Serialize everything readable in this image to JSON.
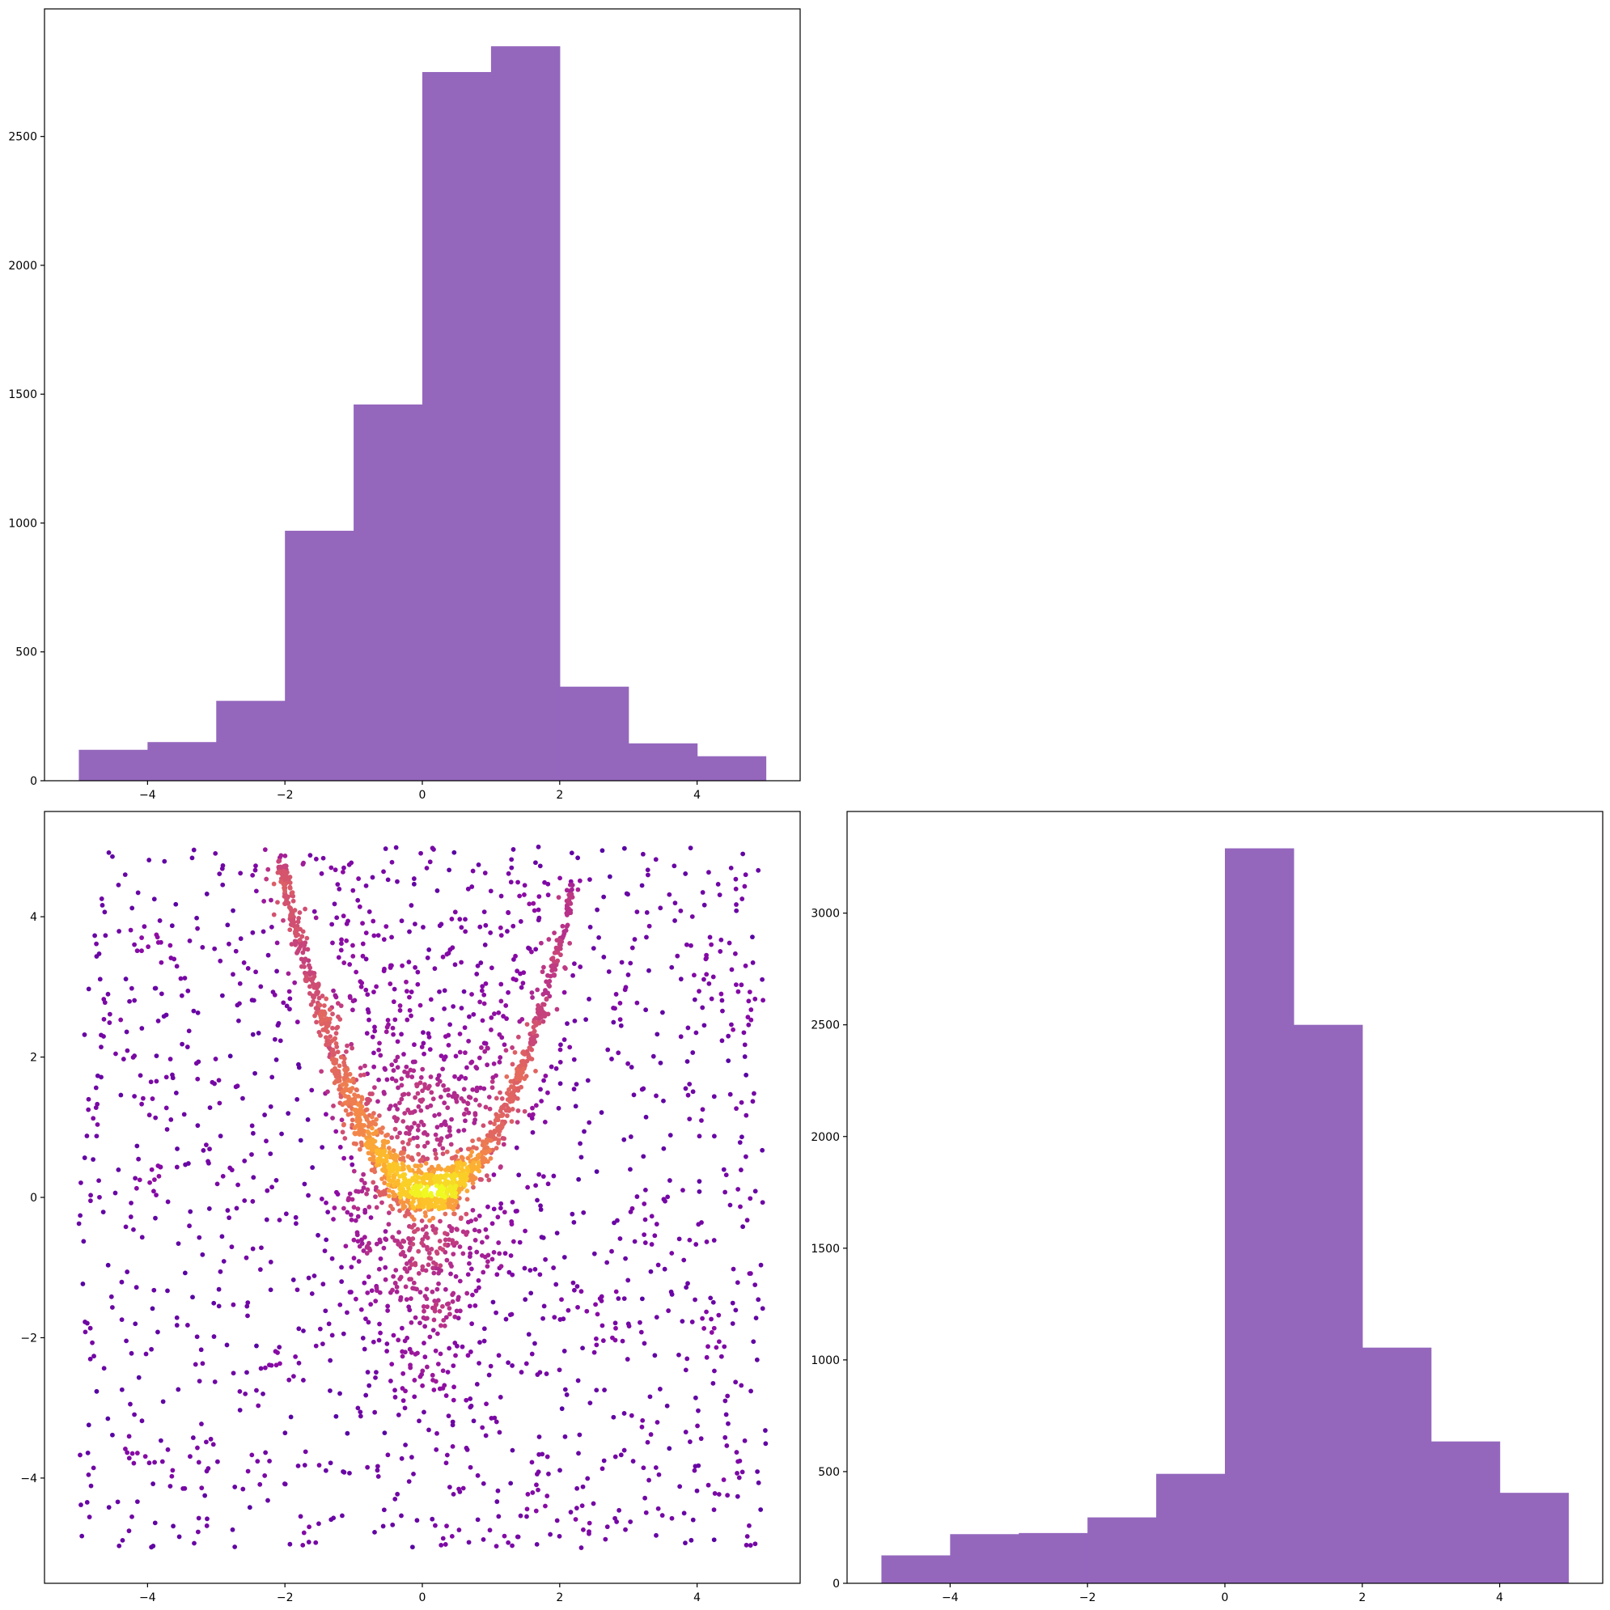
{
  "chart_data": [
    {
      "type": "bar",
      "panel": "top-left",
      "title": "",
      "xlabel": "",
      "ylabel": "",
      "bin_edges": [
        -5,
        -4,
        -3,
        -2,
        -1,
        0,
        1,
        2,
        3,
        4,
        5
      ],
      "values": [
        120,
        150,
        310,
        970,
        1460,
        2750,
        2850,
        365,
        145,
        95
      ],
      "xlim": [
        -5.5,
        5.5
      ],
      "ylim": [
        0,
        2995
      ],
      "xticks": [
        -4,
        -2,
        0,
        2,
        4
      ],
      "xtick_labels": [
        "−4",
        "−2",
        "0",
        "2",
        "4"
      ],
      "yticks": [
        0,
        500,
        1000,
        1500,
        2000,
        2500
      ],
      "ytick_labels": [
        "0",
        "500",
        "1000",
        "1500",
        "2000",
        "2500"
      ],
      "grid": false,
      "color": "#9467bd"
    },
    {
      "type": "scatter",
      "panel": "bottom-left",
      "title": "",
      "xlabel": "",
      "ylabel": "",
      "description_of_points": "approx. 3000 points, uniform background over [-5,5]x[-5,5] plus a dense parabolic band y=(x-0.1)^2 with a secondary arm y=(x-0.1)^2+0.3; colored by point density (plasma colormap, dark purple = sparse, yellow = dense)",
      "xlim": [
        -5.5,
        5.5
      ],
      "ylim": [
        -5.5,
        5.5
      ],
      "xticks": [
        -4,
        -2,
        0,
        2,
        4
      ],
      "xtick_labels": [
        "−4",
        "−2",
        "0",
        "2",
        "4"
      ],
      "yticks": [
        -4,
        -2,
        0,
        2,
        4
      ],
      "ytick_labels": [
        "−4",
        "−2",
        "0",
        "2",
        "4"
      ],
      "colormap": "plasma",
      "colormap_stops": [
        "#0d0887",
        "#5302a3",
        "#8b0aa5",
        "#b83289",
        "#db5c68",
        "#f48849",
        "#febd2a",
        "#f0f921"
      ],
      "grid": false
    },
    {
      "type": "bar",
      "panel": "bottom-right",
      "title": "",
      "xlabel": "",
      "ylabel": "",
      "bin_edges": [
        -5,
        -4,
        -3,
        -2,
        -1,
        0,
        1,
        2,
        3,
        4,
        5
      ],
      "values": [
        125,
        220,
        225,
        295,
        490,
        3290,
        2500,
        1055,
        635,
        405
      ],
      "xlim": [
        -5.5,
        5.5
      ],
      "ylim": [
        0,
        3455
      ],
      "xticks": [
        -4,
        -2,
        0,
        2,
        4
      ],
      "xtick_labels": [
        "−4",
        "−2",
        "0",
        "2",
        "4"
      ],
      "yticks": [
        0,
        500,
        1000,
        1500,
        2000,
        2500,
        3000
      ],
      "ytick_labels": [
        "0",
        "500",
        "1000",
        "1500",
        "2000",
        "2500",
        "3000"
      ],
      "grid": false,
      "color": "#9467bd"
    }
  ]
}
